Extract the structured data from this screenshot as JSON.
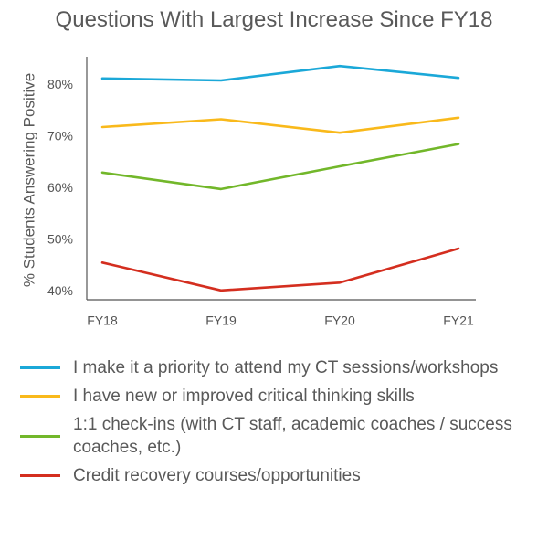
{
  "chart_data": {
    "type": "line",
    "title": "Questions With Largest Increase Since FY18",
    "xlabel": "",
    "ylabel": "% Students Answering Positive",
    "categories": [
      "FY18",
      "FY19",
      "FY20",
      "FY21"
    ],
    "y_ticks": [
      "40%",
      "50%",
      "60%",
      "70%",
      "80%"
    ],
    "ylim": [
      38.5,
      85.5
    ],
    "grid": false,
    "legend_position": "bottom",
    "series": [
      {
        "name": "I make it a priority to attend my CT sessions/workshops",
        "color": "#1ba8d8",
        "values": [
          81.3,
          80.9,
          83.7,
          81.4
        ]
      },
      {
        "name": "I have new or improved critical thinking skills",
        "color": "#f9b91b",
        "values": [
          71.9,
          73.4,
          70.8,
          73.7
        ]
      },
      {
        "name": "1:1 check-ins (with CT staff, academic coaches / success coaches, etc.)",
        "color": "#72b72a",
        "values": [
          63.1,
          59.9,
          64.3,
          68.6
        ]
      },
      {
        "name": "Credit recovery courses/opportunities",
        "color": "#d42e1f",
        "values": [
          45.7,
          40.3,
          41.8,
          48.4
        ]
      }
    ]
  }
}
